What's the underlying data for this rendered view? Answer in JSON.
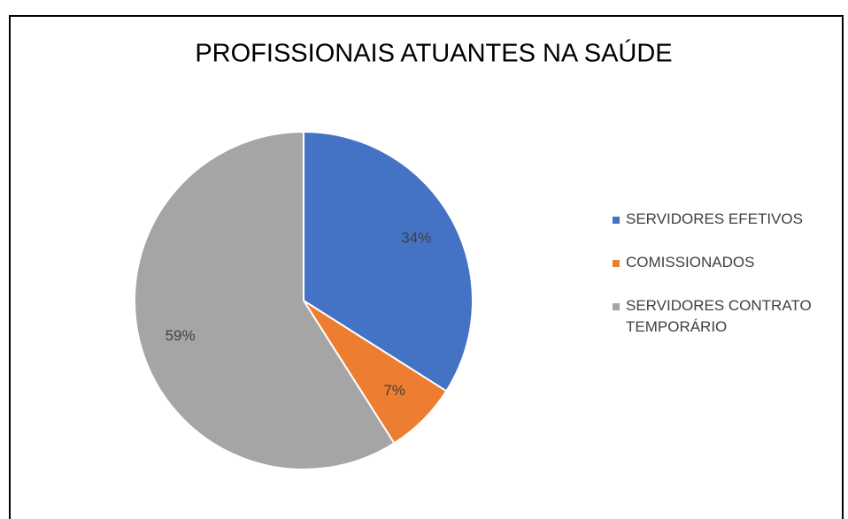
{
  "chart_data": {
    "type": "pie",
    "title": "PROFISSIONAIS ATUANTES NA SAÚDE",
    "categories": [
      "SERVIDORES EFETIVOS",
      "COMISSIONADOS",
      "SERVIDORES CONTRATO TEMPORÁRIO"
    ],
    "values": [
      34,
      7,
      59
    ],
    "value_labels": [
      "34%",
      "7%",
      "59%"
    ],
    "colors": [
      "#4472c4",
      "#ed7d31",
      "#a5a5a5"
    ],
    "legend": "right"
  }
}
